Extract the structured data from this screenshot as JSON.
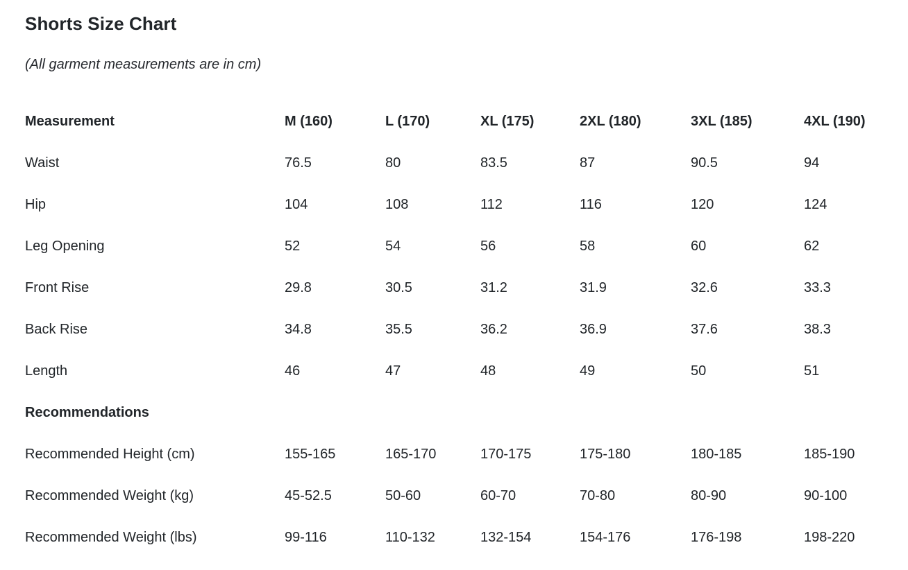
{
  "page": {
    "title": "Shorts Size Chart",
    "note": "(All garment measurements are in cm)"
  },
  "colors": {
    "text": "#212529",
    "background": "#ffffff"
  },
  "table": {
    "columns": [
      "Measurement",
      "M (160)",
      "L (170)",
      "XL (175)",
      "2XL (180)",
      "3XL (185)",
      "4XL (190)"
    ],
    "rows": [
      {
        "type": "data",
        "label": "Waist",
        "values": [
          "76.5",
          "80",
          "83.5",
          "87",
          "90.5",
          "94"
        ]
      },
      {
        "type": "data",
        "label": "Hip",
        "values": [
          "104",
          "108",
          "112",
          "116",
          "120",
          "124"
        ]
      },
      {
        "type": "data",
        "label": "Leg Opening",
        "values": [
          "52",
          "54",
          "56",
          "58",
          "60",
          "62"
        ]
      },
      {
        "type": "data",
        "label": "Front Rise",
        "values": [
          "29.8",
          "30.5",
          "31.2",
          "31.9",
          "32.6",
          "33.3"
        ]
      },
      {
        "type": "data",
        "label": "Back Rise",
        "values": [
          "34.8",
          "35.5",
          "36.2",
          "36.9",
          "37.6",
          "38.3"
        ]
      },
      {
        "type": "data",
        "label": "Length",
        "values": [
          "46",
          "47",
          "48",
          "49",
          "50",
          "51"
        ]
      },
      {
        "type": "section",
        "label": "Recommendations"
      },
      {
        "type": "data",
        "label": "Recommended Height (cm)",
        "values": [
          "155-165",
          "165-170",
          "170-175",
          "175-180",
          "180-185",
          "185-190"
        ]
      },
      {
        "type": "data",
        "label": "Recommended Weight (kg)",
        "values": [
          "45-52.5",
          "50-60",
          "60-70",
          "70-80",
          "80-90",
          "90-100"
        ]
      },
      {
        "type": "data",
        "label": "Recommended Weight (lbs)",
        "values": [
          "99-116",
          "110-132",
          "132-154",
          "154-176",
          "176-198",
          "198-220"
        ]
      }
    ]
  }
}
